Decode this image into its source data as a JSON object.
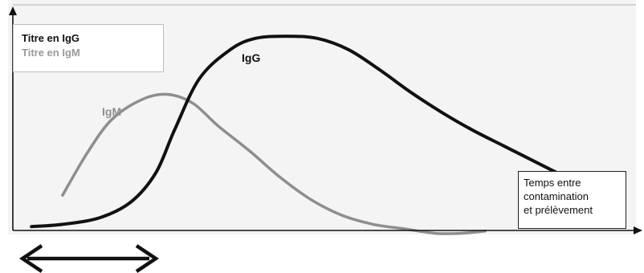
{
  "chart_data": {
    "type": "line",
    "title": "",
    "xlabel": "Temps entre contamination et prélèvement",
    "ylabel": "",
    "grid": false,
    "legend_placement": "top-left",
    "legend": [
      "Titre en IgG",
      "Titre en IgM"
    ],
    "xlim": [
      0,
      100
    ],
    "ylim": [
      0,
      100
    ],
    "series": [
      {
        "name": "IgG",
        "color": "#111111",
        "x": [
          3,
          8,
          14,
          19,
          23,
          26,
          30,
          35,
          39,
          44,
          49,
          54,
          59,
          64,
          69,
          74,
          79,
          84,
          89
        ],
        "y": [
          1,
          2,
          5,
          12,
          25,
          44,
          67,
          80,
          85,
          86,
          85,
          80,
          71,
          61,
          52,
          44,
          37,
          30,
          23
        ]
      },
      {
        "name": "IgM",
        "color": "#8e8e8e",
        "x": [
          8,
          12,
          16,
          21,
          25,
          29,
          33,
          38,
          43,
          48,
          53,
          58,
          63,
          68,
          72,
          76
        ],
        "y": [
          15,
          34,
          49,
          58,
          60,
          56,
          46,
          35,
          23,
          13,
          6,
          2,
          0,
          -2,
          -2,
          -1
        ]
      }
    ],
    "annotations": [
      "IgG",
      "IgM"
    ]
  },
  "legend": {
    "igg": "Titre en IgG",
    "igm": "Titre en IgM"
  },
  "labels": {
    "igg": "IgG",
    "igm": "IgM"
  },
  "xlabel_lines": [
    "Temps entre",
    "contamination",
    "et prélèvement"
  ],
  "arrow_icon": "double-headed-arrow"
}
